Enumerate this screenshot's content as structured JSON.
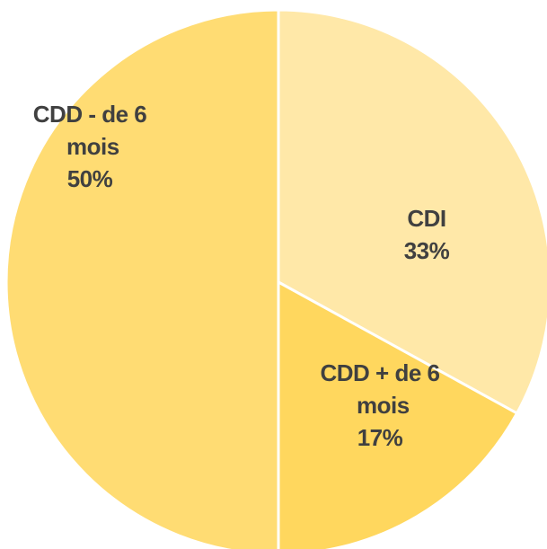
{
  "chart_data": {
    "type": "pie",
    "categories": [
      "CDI",
      "CDD + de 6 mois",
      "CDD - de 6 mois"
    ],
    "values": [
      33,
      17,
      50
    ],
    "value_labels": [
      "33%",
      "17%",
      "50%"
    ],
    "colors": [
      "#FFE8A8",
      "#FFD75E",
      "#FFDC73"
    ]
  }
}
